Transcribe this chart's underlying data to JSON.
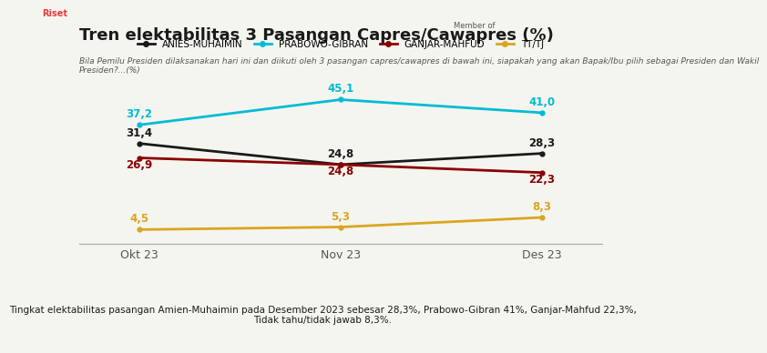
{
  "title": "Tren elektabilitas 3 Pasangan Capres/Cawapres (%)",
  "subtitle": "Bila Pemilu Presiden dilaksanakan hari ini dan diikuti oleh 3 pasangan capres/cawapres di bawah ini, siapakah yang akan Bapak/Ibu pilih sebagai Presiden dan Wakil\nPresiden?...(%)",
  "x_labels": [
    "Okt 23",
    "Nov 23",
    "Des 23"
  ],
  "x_values": [
    0,
    1,
    2
  ],
  "series": [
    {
      "name": "ANIES-MUHAIMIN",
      "values": [
        31.4,
        24.8,
        28.3
      ],
      "color": "#1a1a1a",
      "linewidth": 2.0,
      "linestyle": "-"
    },
    {
      "name": "PRABOWO-GIBRAN",
      "values": [
        37.2,
        45.1,
        41.0
      ],
      "color": "#00bcd4",
      "linewidth": 2.0,
      "linestyle": "-"
    },
    {
      "name": "GANJAR-MAHFUD",
      "values": [
        26.9,
        24.8,
        22.3
      ],
      "color": "#8b0000",
      "linewidth": 2.0,
      "linestyle": "-"
    },
    {
      "name": "TT/TJ",
      "values": [
        4.5,
        5.3,
        8.3
      ],
      "color": "#DAA520",
      "linewidth": 2.0,
      "linestyle": "-"
    }
  ],
  "footer": "Tingkat elektabilitas pasangan Amien-Muhaimin pada Desember 2023 sebesar 28,3%, Prabowo-Gibran 41%, Ganjar-Mahfud 22,3%,\nTidak tahu/tidak jawab 8,3%.",
  "background_color": "#f5f5f0",
  "plot_bg_color": "#f5f5f0",
  "ylim": [
    0,
    52
  ],
  "label_fontsize": 8.5,
  "title_fontsize": 13,
  "subtitle_fontsize": 6.5,
  "footer_fontsize": 7.5,
  "legend_fontsize": 7.5,
  "axis_label_fontsize": 9
}
